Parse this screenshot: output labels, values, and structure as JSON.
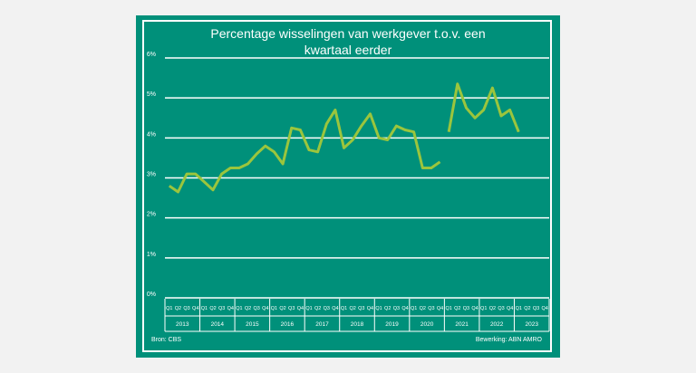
{
  "chart_data": {
    "type": "line",
    "title_line1": "Percentage wisselingen van werkgever t.o.v. een",
    "title_line2": "kwartaal eerder",
    "ylim": [
      0,
      6
    ],
    "yticks": [
      "0%",
      "1%",
      "2%",
      "3%",
      "4%",
      "5%",
      "6%"
    ],
    "quarter_labels": [
      "Q1",
      "Q2",
      "Q3",
      "Q4"
    ],
    "years": [
      "2013",
      "2014",
      "2015",
      "2016",
      "2017",
      "2018",
      "2019",
      "2020",
      "2021",
      "2022",
      "2023"
    ],
    "grid": true,
    "series": [
      {
        "color": "#9bc53d",
        "values": [
          2.8,
          2.65,
          3.1,
          3.1,
          2.9,
          2.7,
          3.1,
          3.25,
          3.25,
          3.35,
          3.6,
          3.8,
          3.65,
          3.35,
          4.25,
          4.2,
          3.7,
          3.65,
          4.35,
          4.7,
          3.75,
          3.95,
          4.3,
          4.6,
          4.0,
          3.95,
          4.3,
          4.2,
          4.15,
          3.25,
          3.25,
          3.4,
          4.15,
          5.35,
          4.75,
          4.5,
          4.7,
          5.25,
          4.55,
          4.7,
          4.15
        ]
      }
    ],
    "gap_after_index": 31
  },
  "footer": {
    "source": "Bron: CBS",
    "credit": "Bewerking: ABN AMRO"
  }
}
